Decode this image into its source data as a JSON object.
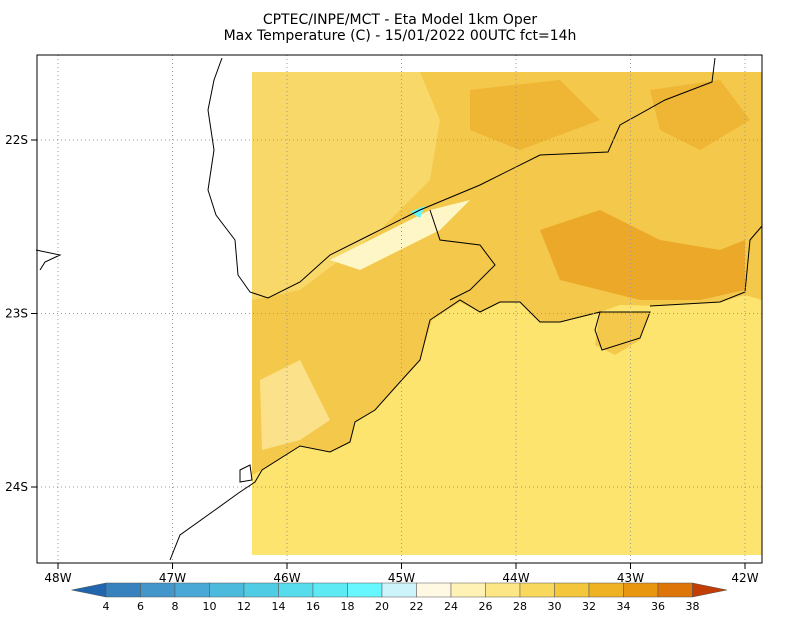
{
  "header": {
    "title": "CPTEC/INPE/MCT -  Eta Model 1km Oper",
    "subtitle": "Max Temperature (C) - 15/01/2022 00UTC fct=14h"
  },
  "map": {
    "lon_labels": [
      "48W",
      "47W",
      "46W",
      "45W",
      "44W",
      "43W",
      "42W"
    ],
    "lat_labels": [
      "22S",
      "23S",
      "24S"
    ]
  },
  "colorbar": {
    "labels": [
      "4",
      "6",
      "8",
      "10",
      "12",
      "14",
      "16",
      "18",
      "20",
      "22",
      "24",
      "26",
      "28",
      "30",
      "32",
      "34",
      "36",
      "38"
    ],
    "colors": [
      "#2166ac",
      "#3582bf",
      "#4396c9",
      "#4aa8d6",
      "#4cbadd",
      "#50cce4",
      "#56dcec",
      "#5eeaf4",
      "#66f7ff",
      "#cdf3fb",
      "#fff8e2",
      "#fff2b4",
      "#fde686",
      "#f9d85e",
      "#f3c63c",
      "#eeb222",
      "#e89510",
      "#de7508",
      "#cf5505",
      "#c23c03"
    ]
  }
}
